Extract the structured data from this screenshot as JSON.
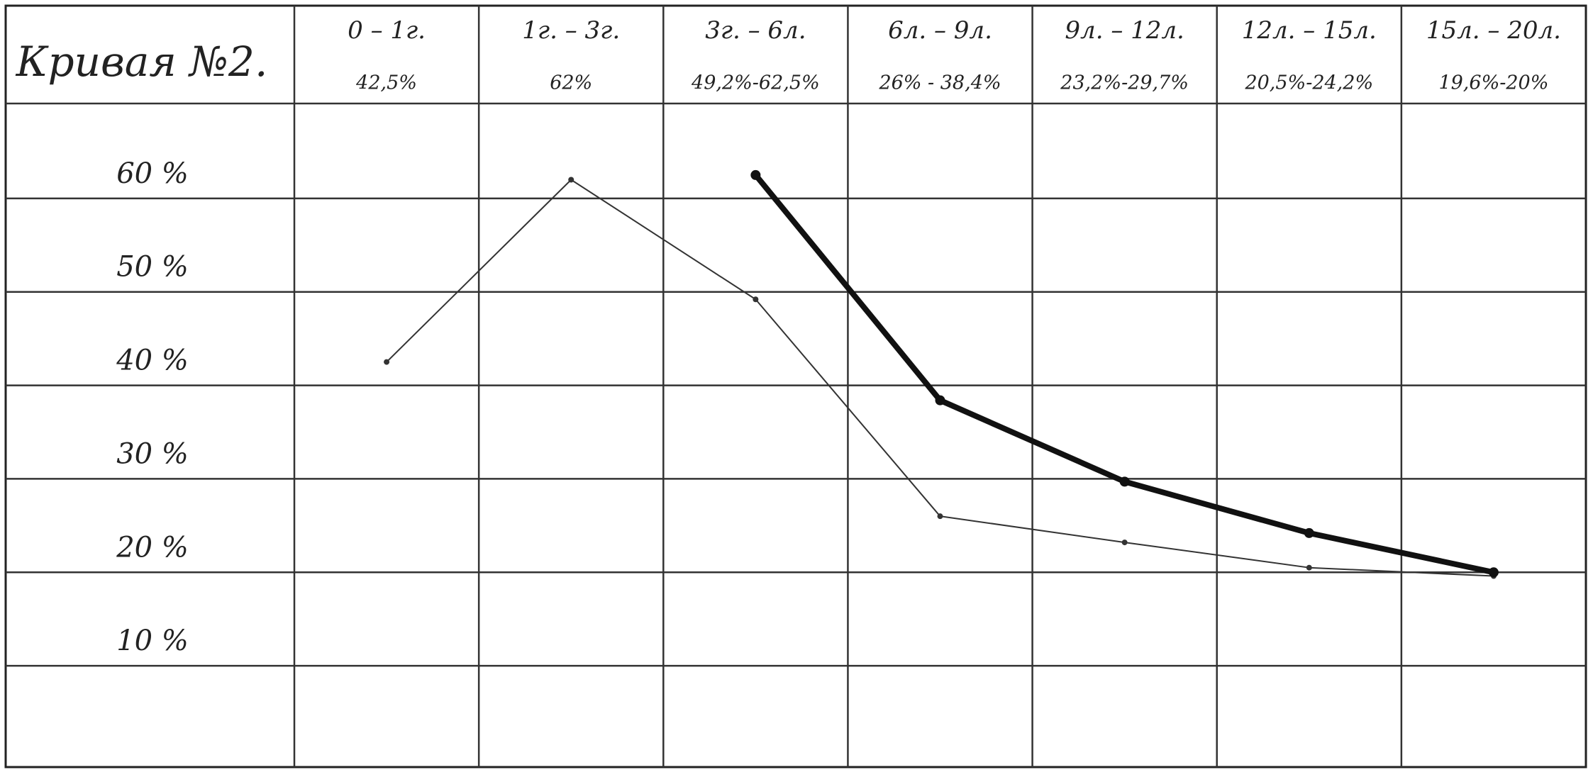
{
  "chart_data": {
    "type": "line",
    "title": "Кривая №2.",
    "categories": [
      "0 – 1г.",
      "1г. – 3г.",
      "3г. – 6л.",
      "6л. – 9л.",
      "9л. – 12л.",
      "12л. – 15л.",
      "15л. – 20л."
    ],
    "category_ranges": [
      "42,5%",
      "62%",
      "49,2%-62,5%",
      "26% - 38,4%",
      "23,2%-29,7%",
      "20,5%-24,2%",
      "19,6%-20%"
    ],
    "series": [
      {
        "color": "#333333",
        "width": 2,
        "values": [
          42.5,
          62,
          49.2,
          26,
          23.2,
          20.5,
          19.6
        ]
      },
      {
        "color": "#111111",
        "width": 8,
        "values": [
          null,
          null,
          62.5,
          38.4,
          29.7,
          24.2,
          20
        ]
      }
    ],
    "ylim": [
      0,
      70
    ],
    "yticks": [
      {
        "value": 10,
        "label": "10 %"
      },
      {
        "value": 20,
        "label": "20 %"
      },
      {
        "value": 30,
        "label": "30 %"
      },
      {
        "value": 40,
        "label": "40 %"
      },
      {
        "value": 50,
        "label": "50 %"
      },
      {
        "value": 60,
        "label": "60 %"
      }
    ],
    "grid": true
  }
}
